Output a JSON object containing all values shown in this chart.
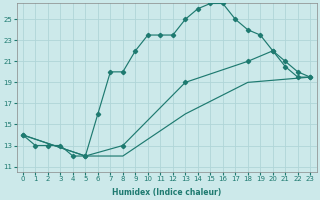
{
  "xlabel": "Humidex (Indice chaleur)",
  "bg_color": "#cce9ea",
  "grid_color": "#b0d5d8",
  "line_color": "#1e7a70",
  "xlim": [
    -0.5,
    23.5
  ],
  "ylim": [
    10.5,
    26.5
  ],
  "xticks": [
    0,
    1,
    2,
    3,
    4,
    5,
    6,
    7,
    8,
    9,
    10,
    11,
    12,
    13,
    14,
    15,
    16,
    17,
    18,
    19,
    20,
    21,
    22,
    23
  ],
  "yticks": [
    11,
    13,
    15,
    17,
    19,
    21,
    23,
    25
  ],
  "curve1_x": [
    0,
    1,
    2,
    3,
    4,
    5,
    6,
    7,
    8,
    9,
    10,
    11,
    12,
    13,
    14,
    15,
    16,
    17,
    18,
    19,
    20,
    21,
    22,
    23
  ],
  "curve1_y": [
    14,
    13,
    13,
    13,
    12,
    12,
    16,
    20,
    20,
    22,
    23.5,
    23.5,
    23.5,
    25,
    26,
    26.5,
    26.5,
    25,
    24,
    23.5,
    22,
    20.5,
    19.5,
    19.5
  ],
  "curve2_x": [
    0,
    5,
    8,
    13,
    18,
    20,
    21,
    22,
    23
  ],
  "curve2_y": [
    14,
    12,
    13,
    19,
    21,
    22,
    21,
    20,
    19.5
  ],
  "curve3_x": [
    0,
    5,
    8,
    13,
    18,
    23
  ],
  "curve3_y": [
    14,
    12,
    12,
    16,
    19,
    19.5
  ]
}
